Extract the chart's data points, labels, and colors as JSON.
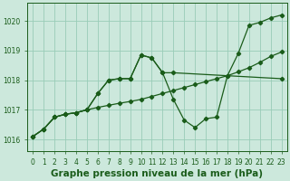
{
  "title": "Graphe pression niveau de la mer (hPa)",
  "bg_color": "#cce8dc",
  "grid_color": "#99ccb8",
  "line_color": "#1a5c1a",
  "marker_color": "#1a5c1a",
  "xlim": [
    -0.5,
    23.5
  ],
  "ylim": [
    1015.6,
    1020.6
  ],
  "yticks": [
    1016,
    1017,
    1018,
    1019,
    1020
  ],
  "xticks": [
    0,
    1,
    2,
    3,
    4,
    5,
    6,
    7,
    8,
    9,
    10,
    11,
    12,
    13,
    14,
    15,
    16,
    17,
    18,
    19,
    20,
    21,
    22,
    23
  ],
  "line1_x": [
    0,
    1,
    2,
    3,
    4,
    5,
    6,
    7,
    8,
    9,
    10,
    11,
    12,
    13,
    14,
    15,
    16,
    17,
    18,
    19,
    20,
    21,
    22,
    23
  ],
  "line1_y": [
    1016.1,
    1016.35,
    1016.75,
    1016.85,
    1016.9,
    1017.0,
    1017.08,
    1017.15,
    1017.22,
    1017.28,
    1017.35,
    1017.45,
    1017.55,
    1017.65,
    1017.75,
    1017.85,
    1017.95,
    1018.05,
    1018.15,
    1018.28,
    1018.42,
    1018.6,
    1018.8,
    1018.95
  ],
  "line2_x": [
    0,
    1,
    2,
    3,
    4,
    5,
    6,
    7,
    8,
    9,
    10,
    11,
    12,
    13,
    14,
    15,
    16,
    17,
    18,
    19,
    20,
    21,
    22,
    23
  ],
  "line2_y": [
    1016.1,
    1016.35,
    1016.75,
    1016.85,
    1016.9,
    1017.0,
    1017.55,
    1018.0,
    1018.05,
    1018.05,
    1018.85,
    1018.75,
    1018.25,
    1017.35,
    1016.65,
    1016.4,
    1016.7,
    1016.75,
    1018.15,
    1018.9,
    1019.85,
    1019.95,
    1020.1,
    1020.2
  ],
  "line3_x": [
    0,
    1,
    2,
    3,
    4,
    5,
    6,
    7,
    8,
    9,
    10,
    11,
    12,
    13,
    23
  ],
  "line3_y": [
    1016.1,
    1016.35,
    1016.75,
    1016.85,
    1016.9,
    1017.0,
    1017.55,
    1018.0,
    1018.05,
    1018.05,
    1018.85,
    1018.75,
    1018.25,
    1018.25,
    1018.05
  ],
  "figsize": [
    3.2,
    2.0
  ],
  "dpi": 100,
  "label_fontsize": 7.5,
  "tick_fontsize": 5.5
}
